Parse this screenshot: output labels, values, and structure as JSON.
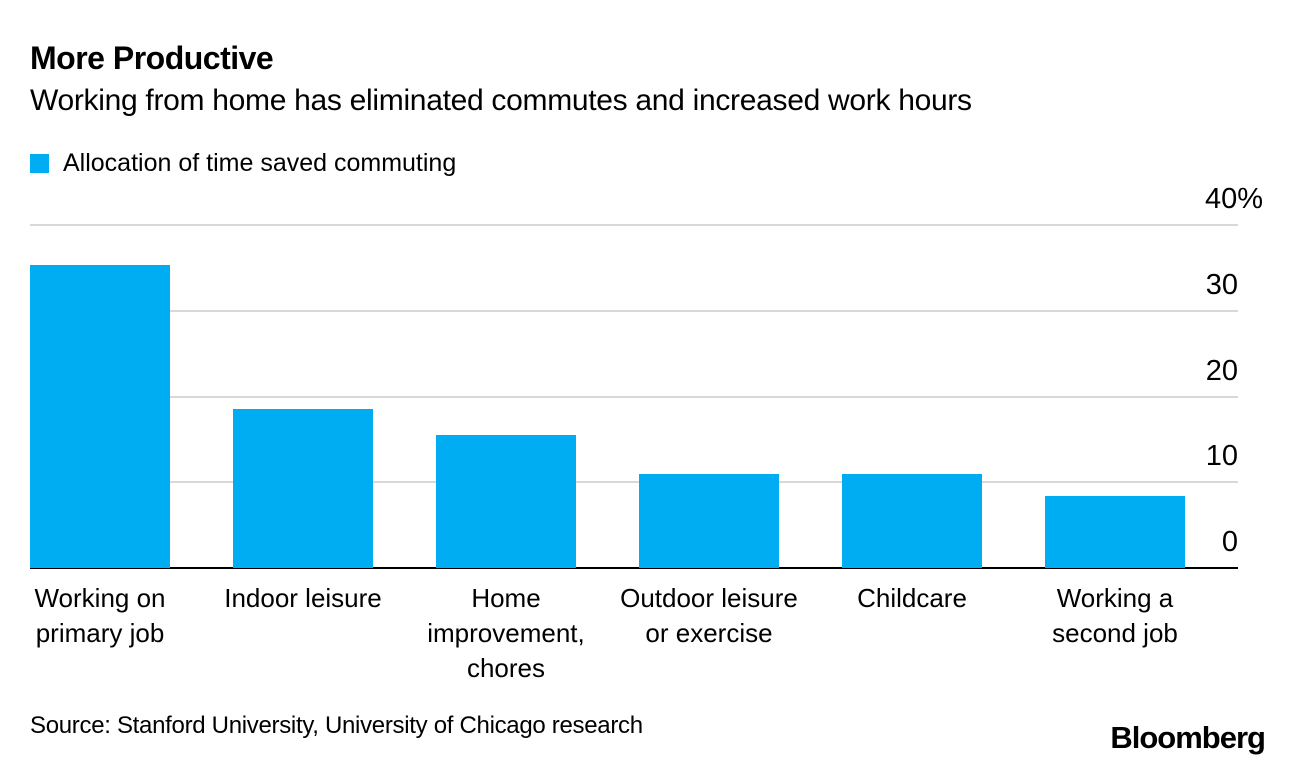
{
  "header": {
    "title": "More Productive",
    "subtitle": "Working from home has eliminated commutes and increased work hours"
  },
  "legend": {
    "label": "Allocation of time saved commuting",
    "swatch_color": "#00ADF3"
  },
  "chart_data": {
    "type": "bar",
    "title": "More Productive",
    "subtitle": "Working from home has eliminated commutes and increased work hours",
    "legend_entries": [
      "Allocation of time saved commuting"
    ],
    "categories": [
      "Working on primary job",
      "Indoor leisure",
      "Home improvement, chores",
      "Outdoor leisure or exercise",
      "Childcare",
      "Working a second job"
    ],
    "values": [
      35.3,
      18.6,
      15.5,
      11.0,
      11.0,
      8.4
    ],
    "unit": "%",
    "ylim": [
      0,
      40
    ],
    "yticks": [
      0,
      10,
      20,
      30,
      40
    ],
    "ytick_labels": [
      "0",
      "10",
      "20",
      "30",
      "40%"
    ],
    "ytick_side": "right",
    "grid": true,
    "bar_color": "#00ADF3",
    "gridline_color": "#D8D8D8",
    "axis_color": "#000000",
    "legend_position": "top-left"
  },
  "source": {
    "text": "Source: Stanford University, University of Chicago research"
  },
  "branding": {
    "logo_text": "Bloomberg"
  }
}
